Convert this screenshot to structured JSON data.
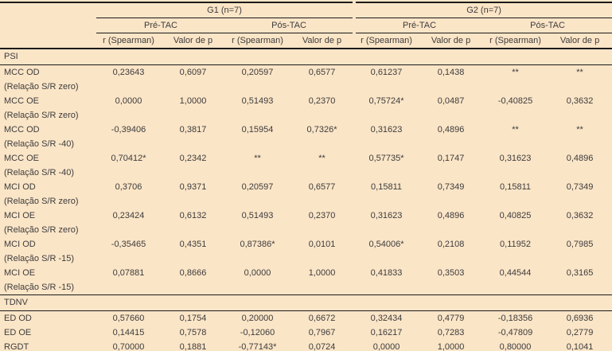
{
  "table": {
    "colors": {
      "background": "#fbe5c7",
      "border": "#1a1a1a",
      "text": "#3c3c3c"
    },
    "header": {
      "corner": "",
      "groups": [
        {
          "label": "G1 (n=7)"
        },
        {
          "label": "G2 (n=7)"
        }
      ],
      "subgroups": [
        "Pré-TAC",
        "Pós-TAC",
        "Pré-TAC",
        "Pós-TAC"
      ],
      "columns": [
        "r (Spearman)",
        "Valor de p",
        "r (Spearman)",
        "Valor de p",
        "r (Spearman)",
        "Valor de p",
        "r (Spearman)",
        "Valor de p"
      ]
    },
    "sections": [
      {
        "name": "PSI",
        "rows": [
          {
            "label": "MCC OD",
            "sublabel": "(Relação S/R zero)",
            "values": [
              "0,23643",
              "0,6097",
              "0,20597",
              "0,6577",
              "0,61237",
              "0,1438",
              "**",
              "**"
            ]
          },
          {
            "label": "MCC OE",
            "sublabel": "(Relação S/R zero)",
            "values": [
              "0,0000",
              "1,0000",
              "0,51493",
              "0,2370",
              "0,75724*",
              "0,0487",
              "-0,40825",
              "0,3632"
            ]
          },
          {
            "label": "MCC OD",
            "sublabel": "(Relação S/R -40)",
            "values": [
              "-0,39406",
              "0,3817",
              "0,15954",
              "0,7326*",
              "0,31623",
              "0,4896",
              "**",
              "**"
            ]
          },
          {
            "label": "MCC OE",
            "sublabel": "(Relação S/R -40)",
            "values": [
              "0,70412*",
              "0,2342",
              "**",
              "**",
              "0,57735*",
              "0,1747",
              "0,31623",
              "0,4896"
            ]
          },
          {
            "label": "MCI OD",
            "sublabel": "(Relação S/R zero)",
            "values": [
              "0,3706",
              "0,9371",
              "0,20597",
              "0,6577",
              "0,15811",
              "0,7349",
              "0,15811",
              "0,7349"
            ]
          },
          {
            "label": "MCI OE",
            "sublabel": "(Relação S/R zero)",
            "values": [
              "0,23424",
              "0,6132",
              "0,51493",
              "0,2370",
              "0,31623",
              "0,4896",
              "0,40825",
              "0,3632"
            ]
          },
          {
            "label": "MCI OD",
            "sublabel": "(Relação S/R -15)",
            "values": [
              "-0,35465",
              "0,4351",
              "0,87386*",
              "0,0101",
              "0,54006*",
              "0,2108",
              "0,11952",
              "0,7985"
            ]
          },
          {
            "label": "MCI OE",
            "sublabel": "(Relação S/R -15)",
            "values": [
              "0,07881",
              "0,8666",
              "0,0000",
              "1,0000",
              "0,41833",
              "0,3503",
              "0,44544",
              "0,3165"
            ]
          }
        ]
      },
      {
        "name": "TDNV",
        "rows": [
          {
            "label": "ED OD",
            "sublabel": "",
            "values": [
              "0,57660",
              "0,1754",
              "0,20000",
              "0,6672",
              "0,32434",
              "0,4779",
              "-0,18356",
              "0,6936"
            ]
          },
          {
            "label": "ED OE",
            "sublabel": "",
            "values": [
              "0,14415",
              "0,7578",
              "-0,12060",
              "0,7967",
              "0,16217",
              "0,7283",
              "-0,47809",
              "0,2779"
            ]
          },
          {
            "label": "RGDT",
            "sublabel": "",
            "values": [
              "0,70000",
              "0,1881",
              "-0,77143*",
              "0,0724",
              "0,0000",
              "1,0000",
              "0,80000",
              "0,1041"
            ]
          }
        ]
      }
    ]
  }
}
